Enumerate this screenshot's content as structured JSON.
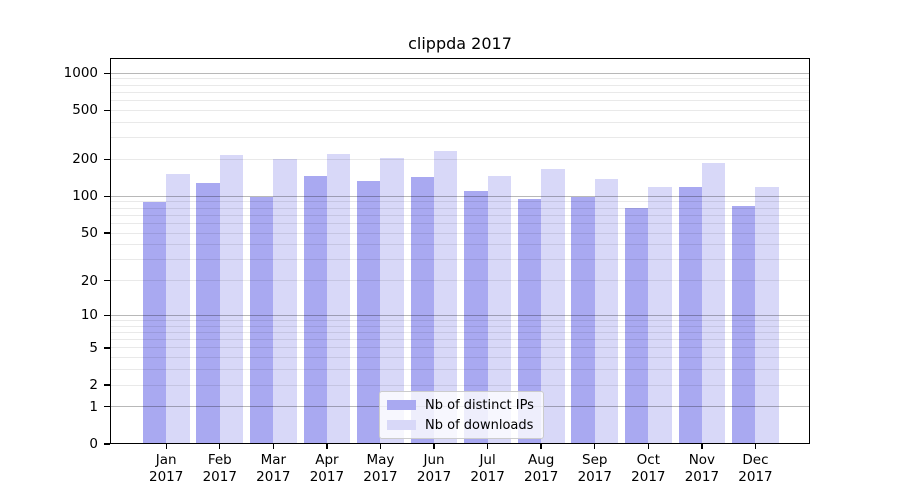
{
  "title": "clippda 2017",
  "chart_data": {
    "type": "bar",
    "title": "clippda 2017",
    "categories": [
      "Jan 2017",
      "Feb 2017",
      "Mar 2017",
      "Apr 2017",
      "May 2017",
      "Jun 2017",
      "Jul 2017",
      "Aug 2017",
      "Sep 2017",
      "Oct 2017",
      "Nov 2017",
      "Dec 2017"
    ],
    "series": [
      {
        "name": "Nb of distinct IPs",
        "color": "#a9a9f1",
        "values": [
          90,
          129,
          99,
          147,
          133,
          145,
          111,
          96,
          98,
          80,
          119,
          84
        ]
      },
      {
        "name": "Nb of downloads",
        "color": "#d8d8f8",
        "values": [
          151,
          217,
          200,
          220,
          204,
          234,
          147,
          166,
          139,
          119,
          188,
          119
        ]
      }
    ],
    "xlabel": "",
    "ylabel": "",
    "y_axis": {
      "scale": "log1p",
      "tick_values": [
        1000,
        500,
        200,
        100,
        50,
        20,
        10,
        5,
        2,
        1,
        0
      ],
      "tick_labels": [
        "1000",
        "500",
        "200",
        "100",
        "50",
        "20",
        "10",
        "5",
        "2",
        "1",
        "0"
      ],
      "major_gridline_values": [
        1,
        10,
        100,
        1000
      ],
      "range": [
        0,
        1200
      ]
    },
    "grid": true,
    "legend": {
      "position": "lower center-left inside plot",
      "entries": [
        "Nb of distinct IPs",
        "Nb of downloads"
      ]
    }
  },
  "colors": {
    "background": "#ffffff",
    "bar_dark": "#a9a9f1",
    "bar_light": "#d8d8f8",
    "spine": "#000000",
    "legend_border": "#cccccc"
  }
}
